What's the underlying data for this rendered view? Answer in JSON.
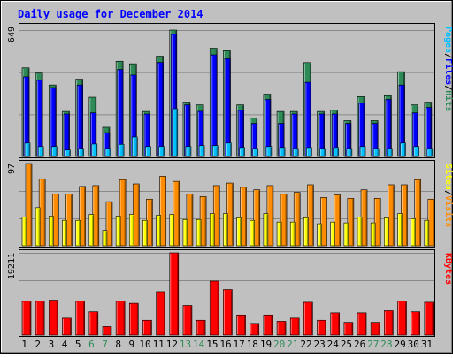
{
  "chart_data": {
    "type": "bar",
    "title": "Daily usage for December 2014",
    "categories": [
      "1",
      "2",
      "3",
      "4",
      "5",
      "6",
      "7",
      "8",
      "9",
      "10",
      "11",
      "12",
      "13",
      "14",
      "15",
      "16",
      "17",
      "18",
      "19",
      "20",
      "21",
      "22",
      "23",
      "24",
      "25",
      "26",
      "27",
      "28",
      "29",
      "30",
      "31"
    ],
    "weekend_days": [
      "6",
      "7",
      "13",
      "14",
      "20",
      "21",
      "27",
      "28"
    ],
    "panels": [
      {
        "id": "hits",
        "ymax_label": "649",
        "ymax": 649,
        "legend": [
          "Pages",
          "/",
          "Files",
          "/",
          "Hits"
        ],
        "series": [
          {
            "name": "Hits",
            "color": "#2e8b57",
            "values": [
              455,
              428,
              367,
              231,
              397,
              304,
              150,
              489,
              476,
              231,
              515,
              649,
              279,
              265,
              556,
              543,
              265,
              197,
              320,
              231,
              231,
              482,
              231,
              238,
              184,
              307,
              184,
              312,
              435,
              265,
              279
            ]
          },
          {
            "name": "Files",
            "color": "#0000ff",
            "values": [
              409,
              392,
              354,
              218,
              367,
              224,
              122,
              447,
              418,
              218,
              483,
              628,
              265,
              232,
              522,
              502,
              238,
              170,
              293,
              170,
              218,
              381,
              218,
              218,
              170,
              275,
              170,
              293,
              367,
              224,
              252
            ]
          },
          {
            "name": "Pages",
            "color": "#00bfff",
            "values": [
              69,
              51,
              51,
              33,
              41,
              64,
              41,
              62,
              100,
              51,
              51,
              245,
              51,
              56,
              56,
              69,
              46,
              41,
              51,
              46,
              41,
              46,
              41,
              46,
              41,
              51,
              41,
              41,
              69,
              51,
              41
            ]
          }
        ]
      },
      {
        "id": "visits",
        "ymax_label": "97",
        "ymax": 97,
        "legend": [
          "Sites",
          "/",
          "Visits"
        ],
        "series": [
          {
            "name": "Visits",
            "color": "#ff8c00",
            "values": [
              97,
              79,
              61,
              61,
              70,
              71,
              52,
              78,
              73,
              55,
              82,
              76,
              61,
              58,
              71,
              74,
              69,
              66,
              71,
              61,
              63,
              72,
              57,
              60,
              56,
              66,
              56,
              72,
              72,
              78,
              55
            ]
          },
          {
            "name": "Sites",
            "color": "#ffff00",
            "values": [
              34,
              45,
              35,
              30,
              30,
              37,
              18,
              35,
              37,
              30,
              36,
              37,
              31,
              31,
              38,
              38,
              33,
              30,
              38,
              28,
              28,
              33,
              26,
              28,
              27,
              34,
              27,
              33,
              38,
              32,
              30
            ]
          }
        ]
      },
      {
        "id": "kbytes",
        "ymax_label": "19211",
        "ymax": 19211,
        "legend": [
          "KBytes"
        ],
        "series": [
          {
            "name": "KBytes",
            "color": "#ff0000",
            "values": [
              7911,
              7911,
              8158,
              3955,
              7911,
              5439,
              1978,
              7911,
              7416,
              3461,
              10136,
              19211,
              6922,
              3461,
              12608,
              10630,
              4697,
              2719,
              4697,
              3214,
              3955,
              7663,
              3461,
              5192,
              2967,
              5192,
              2967,
              5686,
              7911,
              5439,
              7663
            ]
          }
        ]
      }
    ]
  }
}
